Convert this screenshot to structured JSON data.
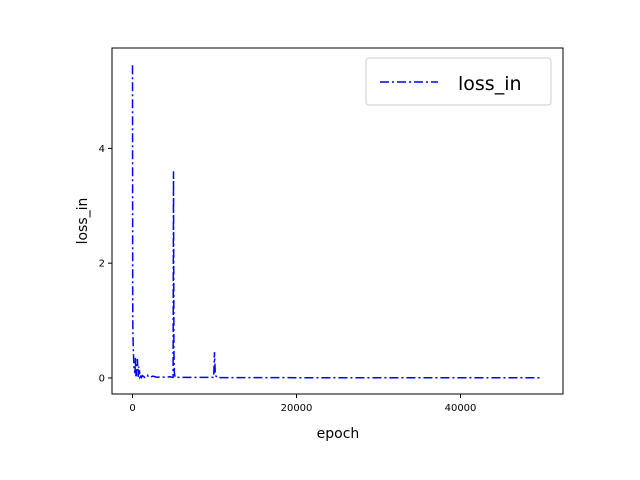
{
  "chart_data": {
    "type": "line",
    "title": "",
    "xlabel": "epoch",
    "ylabel": "loss_in",
    "xlim": [
      -2500,
      52500
    ],
    "ylim": [
      -0.28,
      5.75
    ],
    "xticks": [
      0,
      20000,
      40000
    ],
    "xtick_labels": [
      "0",
      "20000",
      "40000"
    ],
    "yticks": [
      0,
      2,
      4
    ],
    "ytick_labels": [
      "0",
      "2",
      "4"
    ],
    "grid": false,
    "legend_position": "top-right",
    "series": [
      {
        "name": "loss_in",
        "color": "#0000ff",
        "line_style": "dash-dot",
        "x": [
          0,
          20,
          50,
          100,
          150,
          200,
          300,
          350,
          400,
          450,
          500,
          600,
          700,
          750,
          800,
          850,
          900,
          1000,
          1100,
          1200,
          1500,
          1800,
          2000,
          2500,
          3000,
          3500,
          4000,
          4500,
          4950,
          5000,
          5050,
          5100,
          5200,
          6000,
          8000,
          9900,
          10000,
          10100,
          10300,
          15000,
          20000,
          30000,
          40000,
          50000
        ],
        "y": [
          5.45,
          1.4,
          0.8,
          0.5,
          0.3,
          0.15,
          0.08,
          0.35,
          0.05,
          0.03,
          0.12,
          0.33,
          0.02,
          0.2,
          0.06,
          0.15,
          0.01,
          0.03,
          0.01,
          0.04,
          0.01,
          0.05,
          0.01,
          0.03,
          0.01,
          0.02,
          0.01,
          0.02,
          0.01,
          3.6,
          0.5,
          0.1,
          0.01,
          0.01,
          0.01,
          0.01,
          0.45,
          0.05,
          0.005,
          0.005,
          0.004,
          0.003,
          0.003,
          0.003
        ]
      }
    ]
  }
}
